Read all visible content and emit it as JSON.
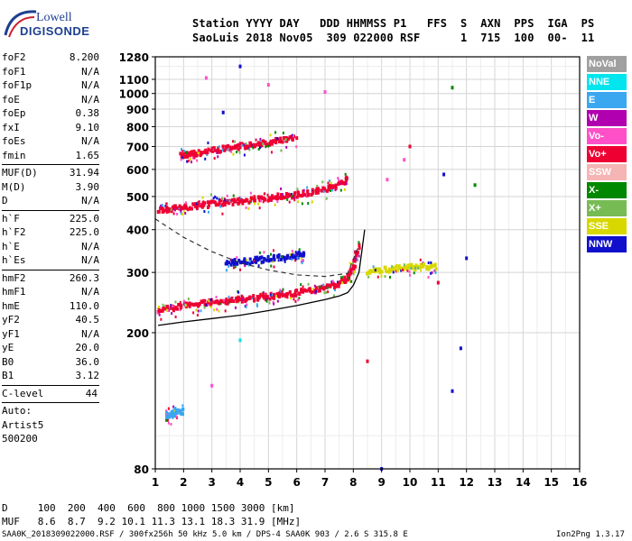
{
  "logo": {
    "line1": "Lowell",
    "line2": "DIGISONDE"
  },
  "header": {
    "line1": "Station YYYY DAY   DDD HHMMSS P1   FFS  S  AXN  PPS  IGA  PS",
    "line2": "SaoLuis 2018 Nov05  309 022000 RSF      1  715  100  00-  11"
  },
  "params": {
    "group1": [
      {
        "label": "foF2",
        "value": "8.200"
      },
      {
        "label": "foF1",
        "value": "N/A"
      },
      {
        "label": "foF1p",
        "value": "N/A"
      },
      {
        "label": "foE",
        "value": "N/A"
      },
      {
        "label": "foEp",
        "value": "0.38"
      },
      {
        "label": "fxI",
        "value": "9.10"
      },
      {
        "label": "foEs",
        "value": "N/A"
      },
      {
        "label": "fmin",
        "value": "1.65"
      }
    ],
    "group2": [
      {
        "label": "MUF(D)",
        "value": "31.94"
      },
      {
        "label": "M(D)",
        "value": "3.90"
      },
      {
        "label": "D",
        "value": "N/A"
      }
    ],
    "group3": [
      {
        "label": "h`F",
        "value": "225.0"
      },
      {
        "label": "h`F2",
        "value": "225.0"
      },
      {
        "label": "h`E",
        "value": "N/A"
      },
      {
        "label": "h`Es",
        "value": "N/A"
      }
    ],
    "group4": [
      {
        "label": "hmF2",
        "value": "260.3"
      },
      {
        "label": "hmF1",
        "value": "N/A"
      },
      {
        "label": "hmE",
        "value": "110.0"
      },
      {
        "label": "yF2",
        "value": "40.5"
      },
      {
        "label": "yF1",
        "value": "N/A"
      },
      {
        "label": "yE",
        "value": "20.0"
      },
      {
        "label": "B0",
        "value": "36.0"
      },
      {
        "label": "B1",
        "value": "3.12"
      }
    ],
    "clevel": {
      "label": "C-level",
      "value": "44"
    },
    "auto": [
      "Auto:",
      "Artist5",
      "500200"
    ]
  },
  "legend": [
    {
      "label": "NoVal",
      "color": "#a0a0a0"
    },
    {
      "label": "NNE",
      "color": "#00e5ee"
    },
    {
      "label": "E",
      "color": "#3ba7f0"
    },
    {
      "label": "W",
      "color": "#b000b0"
    },
    {
      "label": "Vo-",
      "color": "#ff50c8"
    },
    {
      "label": "Vo+",
      "color": "#ee0033"
    },
    {
      "label": "SSW",
      "color": "#f5b5b5"
    },
    {
      "label": "X-",
      "color": "#008800"
    },
    {
      "label": "X+",
      "color": "#77bb55"
    },
    {
      "label": "SSE",
      "color": "#d8d800"
    },
    {
      "label": "NNW",
      "color": "#1010cc"
    }
  ],
  "footer": {
    "d_row": "D     100  200  400  600  800 1000 1500 3000 [km]",
    "muf_row": "MUF   8.6  8.7  9.2 10.1 11.3 13.1 18.3 31.9 [MHz]",
    "file_info": "SAA0K_2018309022000.RSF / 300fx256h 50 kHz 5.0 km / DPS-4 SAA0K 903 / 2.6 S 315.8 E",
    "version": "Ion2Png 1.3.17"
  },
  "chart_data": {
    "type": "scatter",
    "xlim": [
      1,
      16
    ],
    "ylim": [
      80,
      1280
    ],
    "x_ticks": [
      1,
      2,
      3,
      4,
      5,
      6,
      7,
      8,
      9,
      10,
      11,
      12,
      13,
      14,
      15,
      16
    ],
    "y_ticks": [
      80,
      200,
      300,
      400,
      500,
      600,
      700,
      800,
      900,
      1000,
      1100,
      1280
    ],
    "y_scale": "log",
    "grid": true,
    "traces": [
      {
        "name": "F2 trace",
        "color": "#ee0033",
        "points": [
          [
            1.1,
            230
          ],
          [
            1.5,
            235
          ],
          [
            2,
            240
          ],
          [
            2.5,
            242
          ],
          [
            3,
            245
          ],
          [
            3.5,
            247
          ],
          [
            4,
            250
          ],
          [
            4.5,
            252
          ],
          [
            5,
            255
          ],
          [
            5.5,
            258
          ],
          [
            6,
            262
          ],
          [
            6.5,
            265
          ],
          [
            7,
            270
          ],
          [
            7.5,
            278
          ],
          [
            7.8,
            290
          ],
          [
            8,
            310
          ],
          [
            8.2,
            360
          ]
        ]
      },
      {
        "name": "2-hop trace",
        "color": "#ee0033",
        "points": [
          [
            1.1,
            455
          ],
          [
            1.5,
            460
          ],
          [
            2,
            465
          ],
          [
            2.5,
            470
          ],
          [
            3,
            475
          ],
          [
            3.5,
            480
          ],
          [
            4,
            485
          ],
          [
            4.5,
            490
          ],
          [
            5,
            495
          ],
          [
            5.5,
            500
          ],
          [
            6,
            505
          ],
          [
            6.5,
            515
          ],
          [
            7,
            525
          ],
          [
            7.5,
            540
          ],
          [
            7.8,
            560
          ]
        ]
      },
      {
        "name": "3-hop trace",
        "color": "#ee0033",
        "points": [
          [
            1.9,
            660
          ],
          [
            2.2,
            665
          ],
          [
            2.5,
            670
          ],
          [
            3,
            680
          ],
          [
            3.5,
            690
          ],
          [
            4,
            700
          ],
          [
            4.5,
            710
          ],
          [
            5,
            720
          ],
          [
            5.5,
            730
          ],
          [
            6,
            745
          ]
        ]
      },
      {
        "name": "oblique trace",
        "color": "#1010cc",
        "points": [
          [
            3.5,
            320
          ],
          [
            4,
            322
          ],
          [
            4.5,
            325
          ],
          [
            5,
            328
          ],
          [
            5.5,
            332
          ],
          [
            6,
            336
          ],
          [
            6.3,
            340
          ]
        ]
      },
      {
        "name": "X trace",
        "color": "#d8d800",
        "points": [
          [
            8.5,
            300
          ],
          [
            9,
            305
          ],
          [
            9.5,
            308
          ],
          [
            10,
            310
          ],
          [
            10.5,
            312
          ],
          [
            11,
            312
          ]
        ]
      },
      {
        "name": "E trace",
        "color": "#3ba7f0",
        "points": [
          [
            1.4,
            115
          ],
          [
            1.6,
            116
          ],
          [
            1.8,
            117
          ],
          [
            2,
            118
          ]
        ]
      }
    ],
    "profile": {
      "name": "electron density profile",
      "points": [
        [
          1.1,
          210
        ],
        [
          2,
          215
        ],
        [
          3,
          220
        ],
        [
          4,
          225
        ],
        [
          5,
          232
        ],
        [
          6,
          240
        ],
        [
          7,
          250
        ],
        [
          7.5,
          256
        ],
        [
          7.8,
          262
        ],
        [
          8,
          275
        ],
        [
          8.2,
          300
        ],
        [
          8.3,
          345
        ],
        [
          8.4,
          400
        ]
      ]
    },
    "model_curve": {
      "name": "model virtual height",
      "points": [
        [
          1,
          430
        ],
        [
          2,
          380
        ],
        [
          3,
          345
        ],
        [
          4,
          320
        ],
        [
          5,
          305
        ],
        [
          6,
          295
        ],
        [
          7,
          292
        ],
        [
          7.8,
          298
        ],
        [
          8.2,
          360
        ]
      ]
    },
    "scatter_points": [
      {
        "x": 4.0,
        "y": 1200,
        "color": "#1010cc"
      },
      {
        "x": 2.8,
        "y": 1110,
        "color": "#ff50c8"
      },
      {
        "x": 5.0,
        "y": 1060,
        "color": "#ff50c8"
      },
      {
        "x": 11.5,
        "y": 1040,
        "color": "#008800"
      },
      {
        "x": 7.0,
        "y": 1010,
        "color": "#ff50c8"
      },
      {
        "x": 3.4,
        "y": 880,
        "color": "#1010cc"
      },
      {
        "x": 10.0,
        "y": 700,
        "color": "#ee0033"
      },
      {
        "x": 9.8,
        "y": 640,
        "color": "#ff50c8"
      },
      {
        "x": 11.2,
        "y": 580,
        "color": "#1010cc"
      },
      {
        "x": 12.3,
        "y": 540,
        "color": "#008800"
      },
      {
        "x": 9.2,
        "y": 560,
        "color": "#ff50c8"
      },
      {
        "x": 12.0,
        "y": 330,
        "color": "#1010cc"
      },
      {
        "x": 11.0,
        "y": 280,
        "color": "#ee0033"
      },
      {
        "x": 4.0,
        "y": 190,
        "color": "#00e5ee"
      },
      {
        "x": 11.8,
        "y": 180,
        "color": "#1010cc"
      },
      {
        "x": 8.5,
        "y": 165,
        "color": "#ee0033"
      },
      {
        "x": 3.0,
        "y": 140,
        "color": "#ff50c8"
      },
      {
        "x": 11.5,
        "y": 135,
        "color": "#1010cc"
      },
      {
        "x": 1.7,
        "y": 120,
        "color": "#3ba7f0"
      },
      {
        "x": 9.0,
        "y": 80,
        "color": "#1010cc"
      }
    ]
  }
}
